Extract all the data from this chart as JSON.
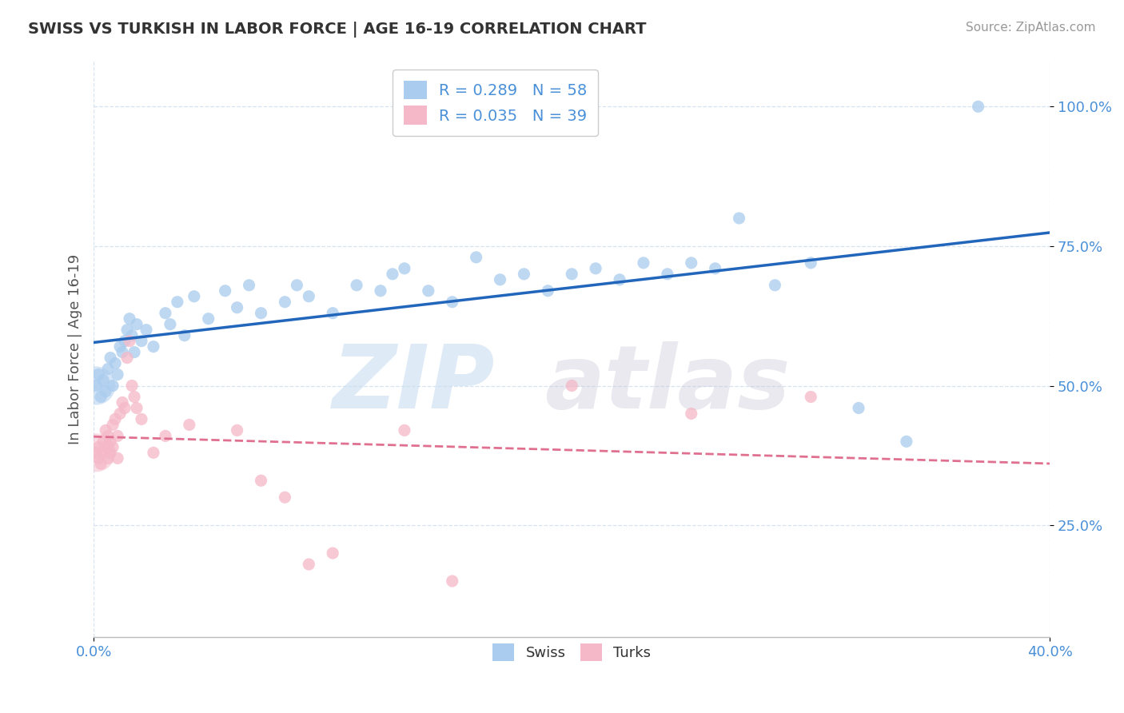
{
  "title": "SWISS VS TURKISH IN LABOR FORCE | AGE 16-19 CORRELATION CHART",
  "source_text": "Source: ZipAtlas.com",
  "ylabel": "In Labor Force | Age 16-19",
  "xlim": [
    0.0,
    0.4
  ],
  "ylim": [
    0.05,
    1.08
  ],
  "ytick_labels": [
    "25.0%",
    "50.0%",
    "75.0%",
    "100.0%"
  ],
  "ytick_vals": [
    0.25,
    0.5,
    0.75,
    1.0
  ],
  "legend_swiss": "R = 0.289   N = 58",
  "legend_turks": "R = 0.035   N = 39",
  "swiss_color": "#aaccee",
  "turks_color": "#f5b8c8",
  "trend_swiss_color": "#2266bb",
  "trend_turks_color": "#e07090",
  "swiss_x": [
    0.001,
    0.002,
    0.003,
    0.004,
    0.005,
    0.006,
    0.007,
    0.008,
    0.009,
    0.01,
    0.011,
    0.012,
    0.013,
    0.014,
    0.015,
    0.016,
    0.017,
    0.018,
    0.02,
    0.022,
    0.025,
    0.03,
    0.032,
    0.035,
    0.038,
    0.042,
    0.048,
    0.055,
    0.06,
    0.065,
    0.07,
    0.08,
    0.085,
    0.09,
    0.1,
    0.11,
    0.12,
    0.125,
    0.13,
    0.14,
    0.15,
    0.16,
    0.17,
    0.18,
    0.19,
    0.2,
    0.21,
    0.22,
    0.23,
    0.24,
    0.25,
    0.26,
    0.27,
    0.285,
    0.3,
    0.32,
    0.34,
    0.37
  ],
  "swiss_y": [
    0.5,
    0.52,
    0.48,
    0.51,
    0.49,
    0.53,
    0.55,
    0.5,
    0.54,
    0.52,
    0.57,
    0.56,
    0.58,
    0.6,
    0.62,
    0.59,
    0.56,
    0.61,
    0.58,
    0.6,
    0.57,
    0.63,
    0.61,
    0.65,
    0.59,
    0.66,
    0.62,
    0.67,
    0.64,
    0.68,
    0.63,
    0.65,
    0.68,
    0.66,
    0.63,
    0.68,
    0.67,
    0.7,
    0.71,
    0.67,
    0.65,
    0.73,
    0.69,
    0.7,
    0.67,
    0.7,
    0.71,
    0.69,
    0.72,
    0.7,
    0.72,
    0.71,
    0.8,
    0.68,
    0.72,
    0.46,
    0.4,
    1.0
  ],
  "turks_x": [
    0.001,
    0.002,
    0.002,
    0.003,
    0.004,
    0.004,
    0.005,
    0.005,
    0.006,
    0.006,
    0.007,
    0.007,
    0.008,
    0.008,
    0.009,
    0.01,
    0.01,
    0.011,
    0.012,
    0.013,
    0.014,
    0.015,
    0.016,
    0.017,
    0.018,
    0.02,
    0.025,
    0.03,
    0.04,
    0.06,
    0.07,
    0.08,
    0.09,
    0.1,
    0.13,
    0.15,
    0.2,
    0.25,
    0.3
  ],
  "turks_y": [
    0.38,
    0.37,
    0.39,
    0.36,
    0.4,
    0.38,
    0.39,
    0.42,
    0.37,
    0.41,
    0.38,
    0.4,
    0.43,
    0.39,
    0.44,
    0.37,
    0.41,
    0.45,
    0.47,
    0.46,
    0.55,
    0.58,
    0.5,
    0.48,
    0.46,
    0.44,
    0.38,
    0.41,
    0.43,
    0.42,
    0.33,
    0.3,
    0.18,
    0.2,
    0.42,
    0.15,
    0.5,
    0.45,
    0.48
  ],
  "swiss_big_x": [
    0.001
  ],
  "swiss_big_y": [
    0.5
  ],
  "turks_big_x": [
    0.001
  ],
  "turks_big_y": [
    0.38
  ]
}
